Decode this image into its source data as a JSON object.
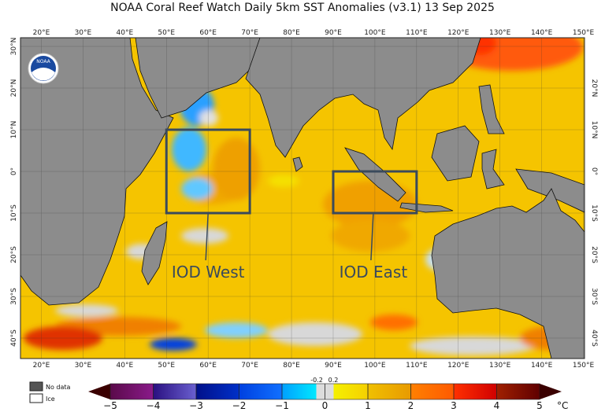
{
  "title": "NOAA Coral Reef Watch Daily 5km SST Anomalies  (v3.1)   13 Sep 2025",
  "logo_text": "NOAA",
  "lon_ticks": [
    "20°E",
    "30°E",
    "40°E",
    "50°E",
    "60°E",
    "70°E",
    "80°E",
    "90°E",
    "100°E",
    "110°E",
    "120°E",
    "130°E",
    "140°E",
    "150°E"
  ],
  "lat_ticks_left": [
    "30°N",
    "20°N",
    "10°N",
    "0°",
    "10°S",
    "20°S",
    "30°S",
    "40°S"
  ],
  "lat_ticks_right": [
    "20°N",
    "10°N",
    "0°",
    "10°S",
    "20°S",
    "30°S",
    "40°S"
  ],
  "regions": [
    {
      "label": "IOD West",
      "lon": [
        50,
        70
      ],
      "lat": [
        -10,
        10
      ]
    },
    {
      "label": "IOD East",
      "lon": [
        90,
        110
      ],
      "lat": [
        -10,
        0
      ]
    }
  ],
  "legend": {
    "no_data": "No data",
    "ice": "Ice",
    "no_data_color": "#555555",
    "ice_color": "#ffffff"
  },
  "colorbar": {
    "labels": [
      "−5",
      "−4",
      "−3",
      "−2",
      "−1",
      "0",
      "1",
      "2",
      "3",
      "4",
      "5"
    ],
    "near_zero_labels": [
      "-0.2",
      "0.2"
    ],
    "unit": "°C",
    "colors": [
      "#5a0a4a",
      "#3a1a9a",
      "#0a1aa0",
      "#0a4ff0",
      "#00a8ff",
      "#d8d8d8",
      "#f5e800",
      "#f09a00",
      "#ff4a00",
      "#a01a00"
    ]
  },
  "colors": {
    "land": "#8c8c8c",
    "ocean_base": "#f5c400",
    "box": "#3a4a5c"
  }
}
